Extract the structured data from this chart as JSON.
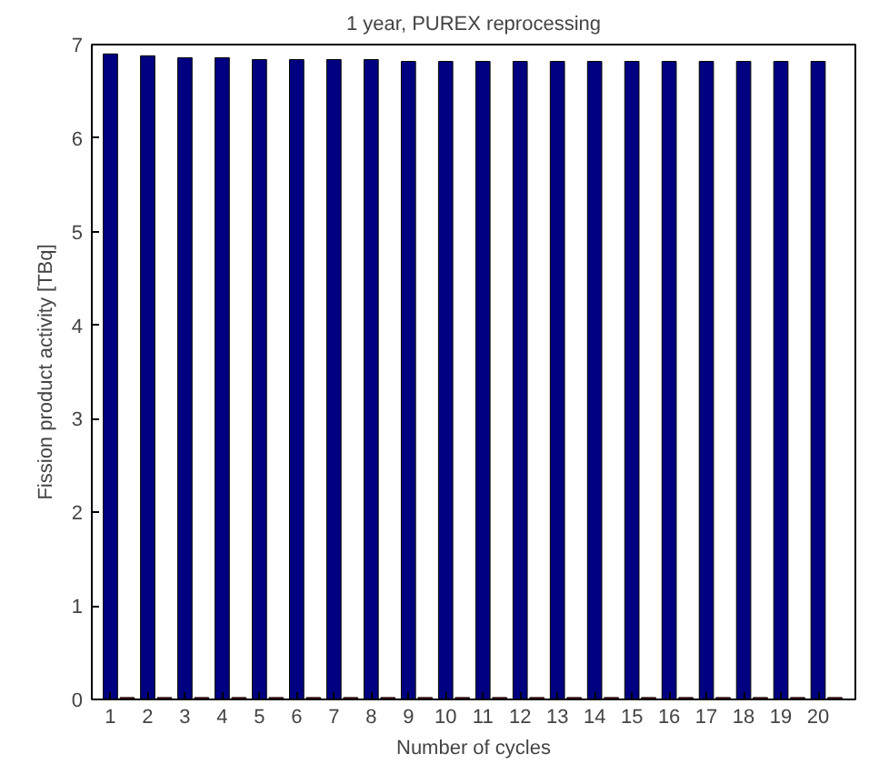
{
  "chart_data": {
    "type": "bar",
    "title": "1 year, PUREX reprocessing",
    "xlabel": "Number of cycles",
    "ylabel": "Fission product activity [TBq]",
    "x": [
      1,
      2,
      3,
      4,
      5,
      6,
      7,
      8,
      9,
      10,
      11,
      12,
      13,
      14,
      15,
      16,
      17,
      18,
      19,
      20
    ],
    "series": [
      {
        "color": "#000080",
        "values": [
          6.9,
          6.88,
          6.86,
          6.86,
          6.84,
          6.84,
          6.84,
          6.84,
          6.82,
          6.82,
          6.82,
          6.82,
          6.82,
          6.82,
          6.82,
          6.82,
          6.82,
          6.82,
          6.82,
          6.82
        ]
      },
      {
        "color": "#800000",
        "values": [
          0.02,
          0.02,
          0.02,
          0.02,
          0.02,
          0.02,
          0.02,
          0.02,
          0.02,
          0.02,
          0.02,
          0.02,
          0.02,
          0.02,
          0.02,
          0.02,
          0.02,
          0.02,
          0.02,
          0.02
        ]
      }
    ],
    "xlim": [
      0.5,
      21
    ],
    "xticks": [
      1,
      2,
      3,
      4,
      5,
      6,
      7,
      8,
      9,
      10,
      11,
      12,
      13,
      14,
      15,
      16,
      17,
      18,
      19,
      20
    ],
    "ylim": [
      0,
      7
    ],
    "yticks": [
      0,
      1,
      2,
      3,
      4,
      5,
      6,
      7
    ],
    "grid": false
  }
}
